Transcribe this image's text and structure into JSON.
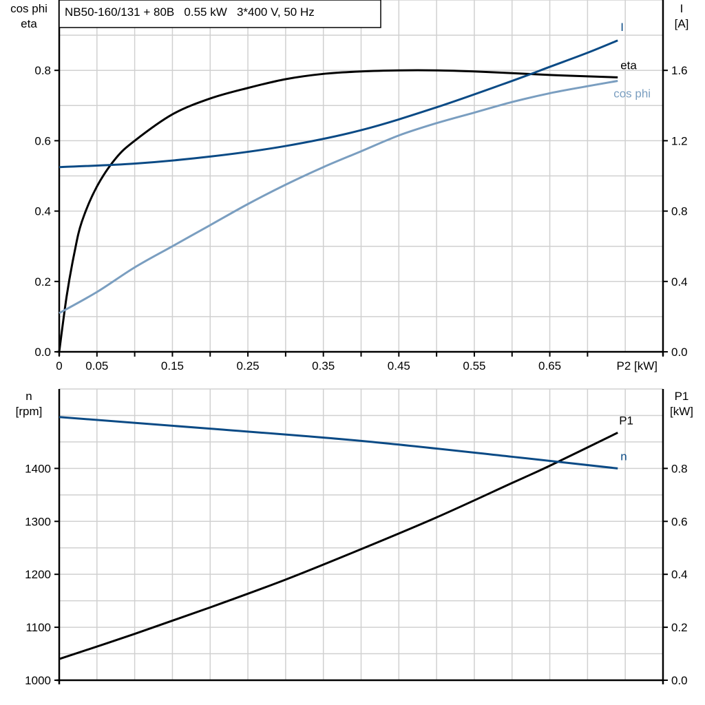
{
  "chart_data": [
    {
      "type": "line",
      "title": "NB50-160/131 + 80B   0.55 kW   3*400 V, 50 Hz",
      "xlabel": "P2 [kW]",
      "ylabel_left": [
        "cos phi",
        "eta"
      ],
      "ylabel_right": [
        "I",
        "[A]"
      ],
      "xlim": [
        0,
        0.8
      ],
      "ylim_left": [
        0,
        1.0
      ],
      "ylim_right": [
        0,
        2.0
      ],
      "x_ticks": [
        "0",
        "0.05",
        "0.15",
        "0.25",
        "0.35",
        "0.45",
        "0.55",
        "0.65"
      ],
      "x_tick_values": [
        0,
        0.05,
        0.15,
        0.25,
        0.35,
        0.45,
        0.55,
        0.65
      ],
      "y_ticks_left": [
        "0.0",
        "0.2",
        "0.4",
        "0.6",
        "0.8"
      ],
      "y_ticks_right": [
        "0.0",
        "0.4",
        "0.8",
        "1.2",
        "1.6"
      ],
      "grid": true,
      "series": [
        {
          "name": "eta",
          "axis": "left",
          "color": "#000000",
          "x": [
            0,
            0.01,
            0.02,
            0.03,
            0.05,
            0.075,
            0.1,
            0.15,
            0.2,
            0.25,
            0.3,
            0.35,
            0.4,
            0.45,
            0.5,
            0.55,
            0.6,
            0.65,
            0.7,
            0.74
          ],
          "y": [
            0,
            0.16,
            0.28,
            0.37,
            0.47,
            0.55,
            0.6,
            0.675,
            0.72,
            0.75,
            0.775,
            0.79,
            0.797,
            0.8,
            0.8,
            0.797,
            0.792,
            0.787,
            0.783,
            0.78
          ]
        },
        {
          "name": "I",
          "axis": "right",
          "color": "#0a4a85",
          "x": [
            0,
            0.1,
            0.2,
            0.3,
            0.4,
            0.5,
            0.6,
            0.65,
            0.7,
            0.74
          ],
          "y": [
            1.05,
            1.07,
            1.11,
            1.17,
            1.26,
            1.39,
            1.54,
            1.62,
            1.7,
            1.77
          ]
        },
        {
          "name": "cos phi",
          "axis": "left",
          "color": "#7a9ec0",
          "x": [
            0,
            0.05,
            0.1,
            0.15,
            0.2,
            0.25,
            0.3,
            0.35,
            0.4,
            0.45,
            0.5,
            0.55,
            0.6,
            0.65,
            0.7,
            0.74
          ],
          "y": [
            0.11,
            0.17,
            0.24,
            0.3,
            0.36,
            0.42,
            0.475,
            0.525,
            0.57,
            0.615,
            0.65,
            0.68,
            0.71,
            0.735,
            0.755,
            0.77
          ]
        }
      ]
    },
    {
      "type": "line",
      "ylabel_left": [
        "n",
        "[rpm]"
      ],
      "ylabel_right": [
        "P1",
        "[kW]"
      ],
      "xlim": [
        0,
        0.8
      ],
      "ylim_left": [
        1000,
        1550
      ],
      "ylim_right": [
        0,
        1.1
      ],
      "y_ticks_left": [
        "1000",
        "1100",
        "1200",
        "1300",
        "1400"
      ],
      "y_ticks_right": [
        "0.0",
        "0.2",
        "0.4",
        "0.6",
        "0.8"
      ],
      "grid": true,
      "series": [
        {
          "name": "P1",
          "axis": "right",
          "color": "#000000",
          "x": [
            0,
            0.1,
            0.2,
            0.3,
            0.4,
            0.5,
            0.6,
            0.65,
            0.74
          ],
          "y": [
            0.08,
            0.175,
            0.275,
            0.38,
            0.495,
            0.615,
            0.745,
            0.81,
            0.935
          ]
        },
        {
          "name": "n",
          "axis": "left",
          "color": "#0a4a85",
          "x": [
            0,
            0.2,
            0.4,
            0.6,
            0.74
          ],
          "y": [
            1497,
            1475,
            1452,
            1422,
            1400
          ]
        }
      ]
    }
  ]
}
